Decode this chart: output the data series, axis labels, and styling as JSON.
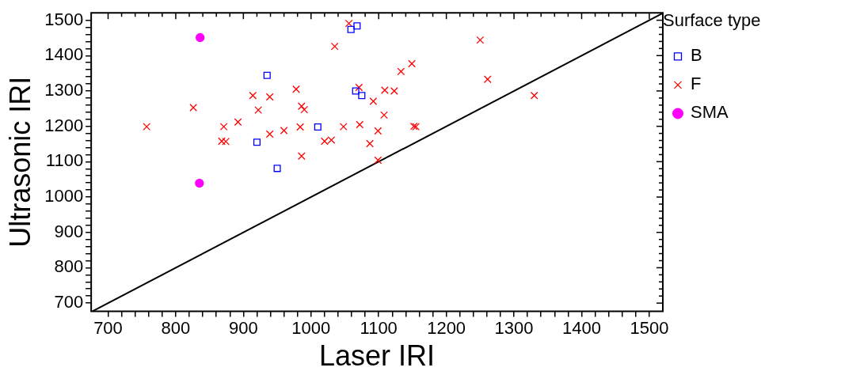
{
  "chart_data": {
    "type": "scatter",
    "xlabel": "Laser IRI",
    "ylabel": "Ultrasonic IRI",
    "legend_title": "Surface type",
    "legend": "right",
    "grid": false,
    "xlim": [
      675,
      1520
    ],
    "ylim": [
      677,
      1521
    ],
    "xticks": [
      700,
      {
        "value": 720,
        "label": null
      },
      {
        "value": 740,
        "label": null
      },
      {
        "value": 760,
        "label": null
      },
      {
        "value": 780,
        "label": null
      },
      800,
      {
        "value": 820,
        "label": null
      },
      {
        "value": 840,
        "label": null
      },
      {
        "value": 860,
        "label": null
      },
      {
        "value": 880,
        "label": null
      },
      900,
      {
        "value": 920,
        "label": null
      },
      {
        "value": 940,
        "label": null
      },
      {
        "value": 960,
        "label": null
      },
      {
        "value": 980,
        "label": null
      },
      1000,
      {
        "value": 1020,
        "label": null
      },
      {
        "value": 1040,
        "label": null
      },
      {
        "value": 1060,
        "label": null
      },
      {
        "value": 1080,
        "label": null
      },
      1100,
      {
        "value": 1120,
        "label": null
      },
      {
        "value": 1140,
        "label": null
      },
      {
        "value": 1160,
        "label": null
      },
      {
        "value": 1180,
        "label": null
      },
      1200,
      {
        "value": 1220,
        "label": null
      },
      {
        "value": 1240,
        "label": null
      },
      {
        "value": 1260,
        "label": null
      },
      {
        "value": 1280,
        "label": null
      },
      1300,
      {
        "value": 1320,
        "label": null
      },
      {
        "value": 1340,
        "label": null
      },
      {
        "value": 1360,
        "label": null
      },
      {
        "value": 1380,
        "label": null
      },
      1400,
      {
        "value": 1420,
        "label": null
      },
      {
        "value": 1440,
        "label": null
      },
      {
        "value": 1460,
        "label": null
      },
      {
        "value": 1480,
        "label": null
      },
      1500
    ],
    "yticks": [
      700,
      {
        "value": 720,
        "label": null
      },
      {
        "value": 740,
        "label": null
      },
      {
        "value": 760,
        "label": null
      },
      {
        "value": 780,
        "label": null
      },
      800,
      {
        "value": 820,
        "label": null
      },
      {
        "value": 840,
        "label": null
      },
      {
        "value": 860,
        "label": null
      },
      {
        "value": 880,
        "label": null
      },
      900,
      {
        "value": 920,
        "label": null
      },
      {
        "value": 940,
        "label": null
      },
      {
        "value": 960,
        "label": null
      },
      {
        "value": 980,
        "label": null
      },
      1000,
      {
        "value": 1020,
        "label": null
      },
      {
        "value": 1040,
        "label": null
      },
      {
        "value": 1060,
        "label": null
      },
      {
        "value": 1080,
        "label": null
      },
      1100,
      {
        "value": 1120,
        "label": null
      },
      {
        "value": 1140,
        "label": null
      },
      {
        "value": 1160,
        "label": null
      },
      {
        "value": 1180,
        "label": null
      },
      1200,
      {
        "value": 1220,
        "label": null
      },
      {
        "value": 1240,
        "label": null
      },
      {
        "value": 1260,
        "label": null
      },
      {
        "value": 1280,
        "label": null
      },
      1300,
      {
        "value": 1320,
        "label": null
      },
      {
        "value": 1340,
        "label": null
      },
      {
        "value": 1360,
        "label": null
      },
      {
        "value": 1380,
        "label": null
      },
      1400,
      {
        "value": 1420,
        "label": null
      },
      {
        "value": 1440,
        "label": null
      },
      {
        "value": 1460,
        "label": null
      },
      {
        "value": 1480,
        "label": null
      },
      1500
    ],
    "series": [
      {
        "name": "B",
        "color": "#0000ff",
        "marker": "square",
        "x": [
          935,
          1059,
          1068,
          1066,
          1075,
          1010,
          920,
          950
        ],
        "values": [
          1344,
          1474,
          1484,
          1300,
          1287,
          1198,
          1155,
          1081
        ]
      },
      {
        "name": "F",
        "color": "#ff0000",
        "marker": "cross",
        "x": [
          757,
          826,
          871,
          868,
          874,
          892,
          914,
          939,
          922,
          939,
          960,
          978,
          984,
          986,
          990,
          986,
          1020,
          1030,
          1035,
          1048,
          1056,
          1071,
          1072,
          1092,
          1087,
          1099,
          1099,
          1108,
          1109,
          1123,
          1133,
          1149,
          1152,
          1155,
          1250,
          1261,
          1330
        ],
        "values": [
          1199,
          1253,
          1199,
          1158,
          1157,
          1212,
          1287,
          1283,
          1246,
          1178,
          1188,
          1305,
          1198,
          1257,
          1247,
          1116,
          1158,
          1161,
          1426,
          1199,
          1491,
          1310,
          1205,
          1271,
          1151,
          1187,
          1104,
          1232,
          1302,
          1300,
          1355,
          1377,
          1200,
          1199,
          1444,
          1333,
          1287
        ]
      },
      {
        "name": "SMA",
        "color": "#ff00ff",
        "marker": "circle",
        "x": [
          836,
          835
        ],
        "values": [
          1451,
          1039
        ]
      },
      {
        "type": "line",
        "color": "#000000",
        "marker": "none",
        "x": [
          677,
          1520
        ],
        "values": [
          677,
          1520
        ]
      }
    ]
  }
}
